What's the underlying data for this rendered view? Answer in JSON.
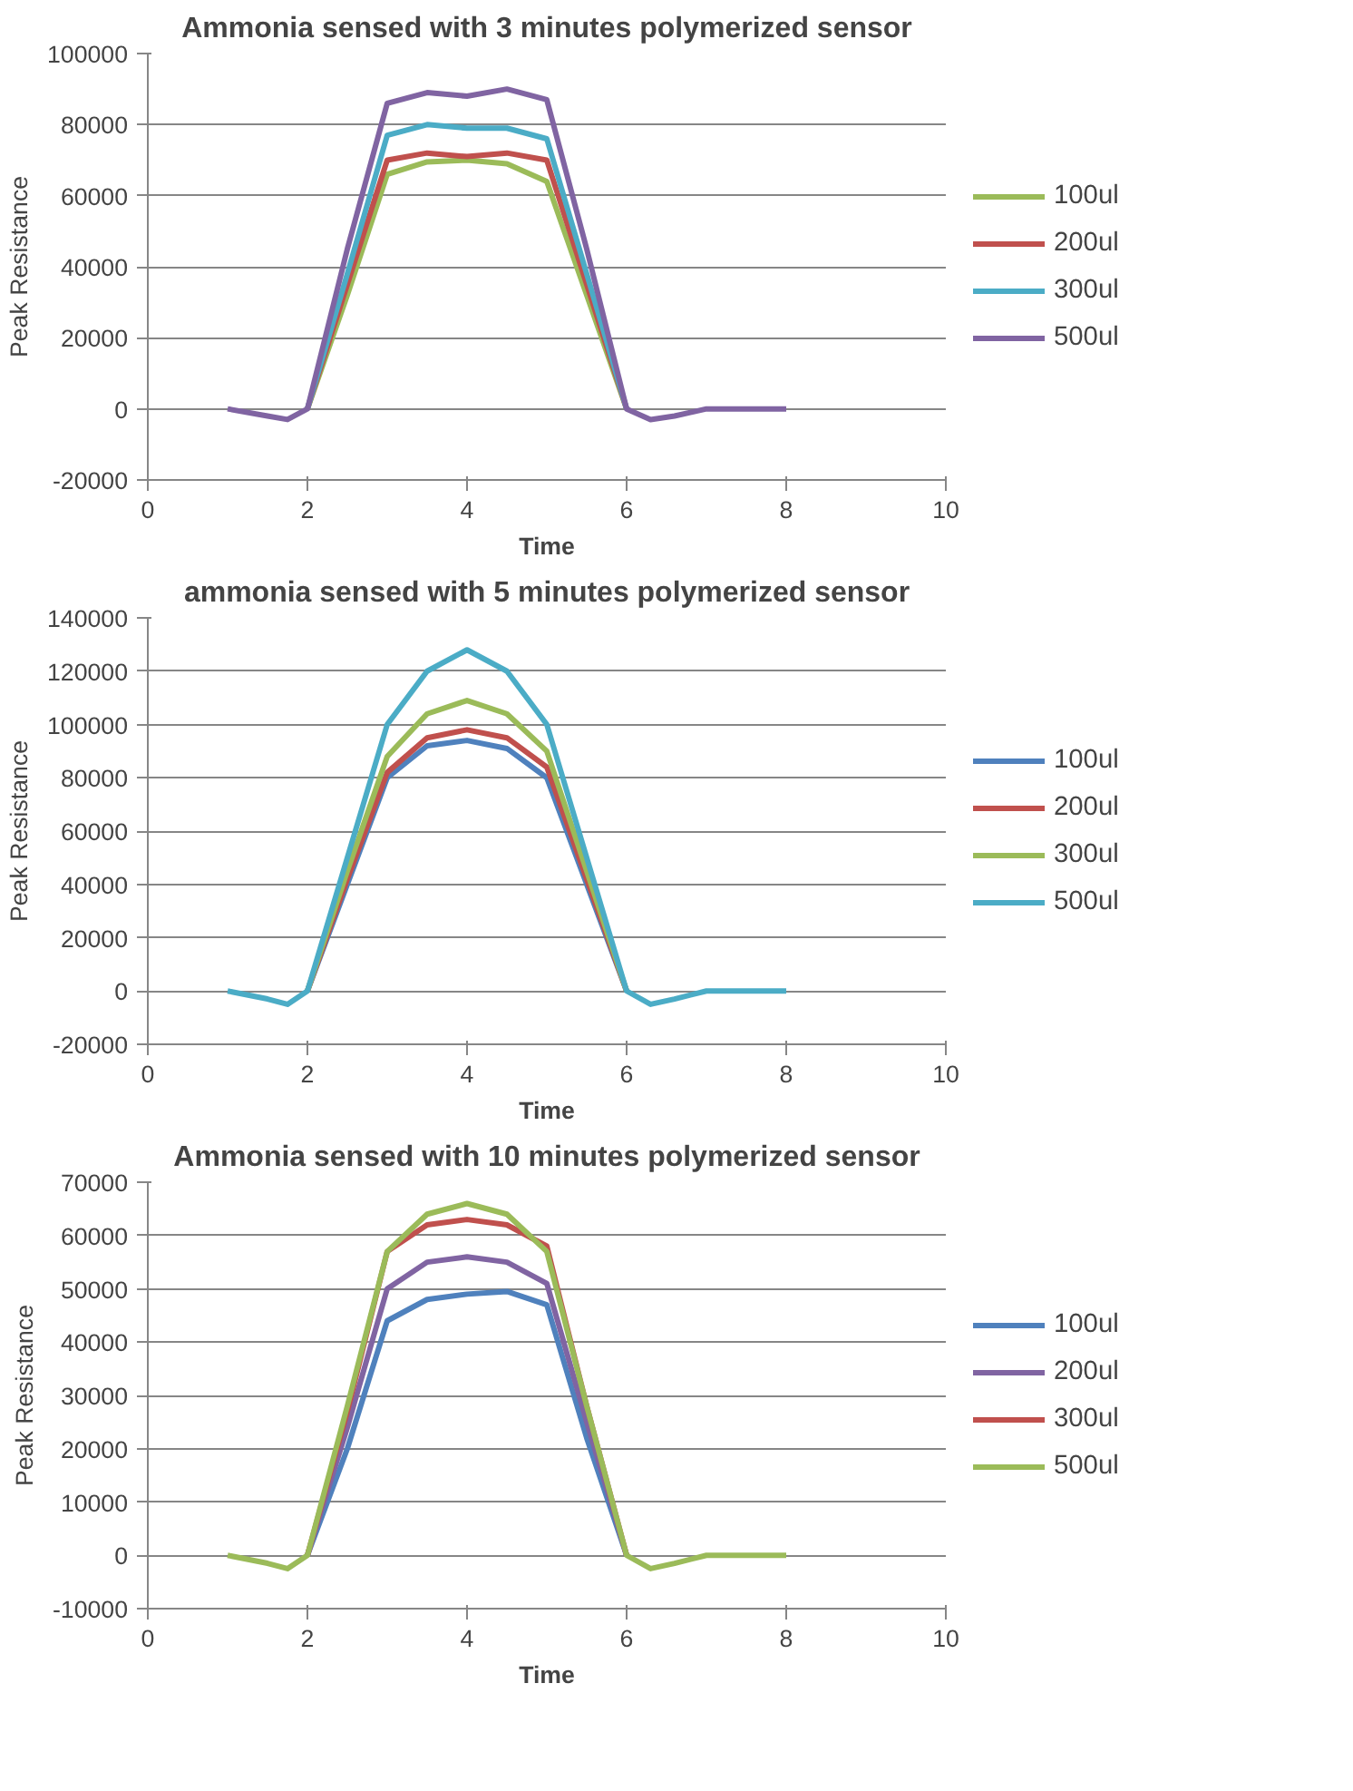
{
  "chart_data": [
    {
      "type": "line",
      "title": "Ammonia sensed with 3 minutes polymerized sensor",
      "xlabel": "Time",
      "ylabel": "Peak Resistance",
      "x": [
        1,
        1.5,
        1.75,
        2,
        2.5,
        3,
        3.5,
        4,
        4.5,
        5,
        5.5,
        6,
        6.3,
        6.6,
        7,
        8
      ],
      "xlim": [
        0,
        10
      ],
      "xticks": [
        0,
        2,
        4,
        6,
        8,
        10
      ],
      "ylim": [
        -20000,
        100000
      ],
      "yticks": [
        -20000,
        0,
        20000,
        40000,
        60000,
        80000,
        100000
      ],
      "grid": "y",
      "legend": "right",
      "line_style": "solid",
      "series": [
        {
          "name": "100ul",
          "color": "#9bbb59",
          "values": [
            null,
            null,
            null,
            0,
            32000,
            66000,
            69500,
            70000,
            69000,
            64000,
            32000,
            0,
            null,
            null,
            null,
            null
          ]
        },
        {
          "name": "200ul",
          "color": "#c0504d",
          "values": [
            null,
            null,
            null,
            0,
            35000,
            70000,
            72000,
            71000,
            72000,
            70000,
            35000,
            0,
            null,
            null,
            null,
            null
          ]
        },
        {
          "name": "300ul",
          "color": "#4bacc6",
          "values": [
            null,
            null,
            null,
            0,
            38000,
            77000,
            80000,
            79000,
            79000,
            76000,
            38000,
            0,
            null,
            null,
            null,
            null
          ]
        },
        {
          "name": "500ul",
          "color": "#8064a2",
          "values": [
            0,
            -2000,
            -3000,
            0,
            45000,
            86000,
            89000,
            88000,
            90000,
            87000,
            45000,
            0,
            -3000,
            -2000,
            0,
            0
          ]
        }
      ]
    },
    {
      "type": "line",
      "title": "ammonia sensed with 5 minutes polymerized sensor",
      "xlabel": "Time",
      "ylabel": "Peak Resistance",
      "x": [
        1,
        1.5,
        1.75,
        2,
        2.5,
        3,
        3.5,
        4,
        4.5,
        5,
        5.5,
        6,
        6.3,
        6.6,
        7,
        8
      ],
      "xlim": [
        0,
        10
      ],
      "xticks": [
        0,
        2,
        4,
        6,
        8,
        10
      ],
      "ylim": [
        -20000,
        140000
      ],
      "yticks": [
        -20000,
        0,
        20000,
        40000,
        60000,
        80000,
        100000,
        120000,
        140000
      ],
      "grid": "y",
      "legend": "right",
      "line_style": "solid",
      "series": [
        {
          "name": "100ul",
          "color": "#4f81bd",
          "values": [
            null,
            null,
            null,
            0,
            40000,
            80000,
            92000,
            94000,
            91000,
            80000,
            40000,
            0,
            null,
            null,
            null,
            null
          ]
        },
        {
          "name": "200ul",
          "color": "#c0504d",
          "values": [
            null,
            null,
            null,
            0,
            42000,
            82000,
            95000,
            98000,
            95000,
            84000,
            42000,
            0,
            null,
            null,
            null,
            null
          ]
        },
        {
          "name": "300ul",
          "color": "#9bbb59",
          "values": [
            null,
            null,
            null,
            0,
            45000,
            88000,
            104000,
            109000,
            104000,
            90000,
            45000,
            0,
            null,
            null,
            null,
            null
          ]
        },
        {
          "name": "500ul",
          "color": "#4bacc6",
          "values": [
            0,
            -3000,
            -5000,
            0,
            50000,
            100000,
            120000,
            128000,
            120000,
            100000,
            50000,
            0,
            -5000,
            -3000,
            0,
            0
          ]
        }
      ]
    },
    {
      "type": "line",
      "title": "Ammonia sensed with 10 minutes polymerized sensor",
      "xlabel": "Time",
      "ylabel": "Peak Resistance",
      "x": [
        1,
        1.5,
        1.75,
        2,
        2.5,
        3,
        3.5,
        4,
        4.5,
        5,
        5.5,
        6,
        6.3,
        6.6,
        7,
        8
      ],
      "xlim": [
        0,
        10
      ],
      "xticks": [
        0,
        2,
        4,
        6,
        8,
        10
      ],
      "ylim": [
        -10000,
        70000
      ],
      "yticks": [
        -10000,
        0,
        10000,
        20000,
        30000,
        40000,
        50000,
        60000,
        70000
      ],
      "grid": "y",
      "legend": "right",
      "line_style": "solid",
      "series": [
        {
          "name": "100ul",
          "color": "#4f81bd",
          "values": [
            null,
            null,
            null,
            0,
            20000,
            44000,
            48000,
            49000,
            49500,
            47000,
            22000,
            0,
            null,
            null,
            null,
            null
          ]
        },
        {
          "name": "200ul",
          "color": "#8064a2",
          "values": [
            null,
            null,
            null,
            0,
            24000,
            50000,
            55000,
            56000,
            55000,
            51000,
            25000,
            0,
            null,
            null,
            null,
            null
          ]
        },
        {
          "name": "300ul",
          "color": "#c0504d",
          "values": [
            null,
            null,
            null,
            0,
            27000,
            57000,
            62000,
            63000,
            62000,
            58000,
            28000,
            0,
            null,
            null,
            null,
            null
          ]
        },
        {
          "name": "500ul",
          "color": "#9bbb59",
          "values": [
            0,
            -1500,
            -2500,
            0,
            28000,
            57000,
            64000,
            66000,
            64000,
            57000,
            28000,
            0,
            -2500,
            -1500,
            0,
            0
          ]
        }
      ]
    }
  ]
}
